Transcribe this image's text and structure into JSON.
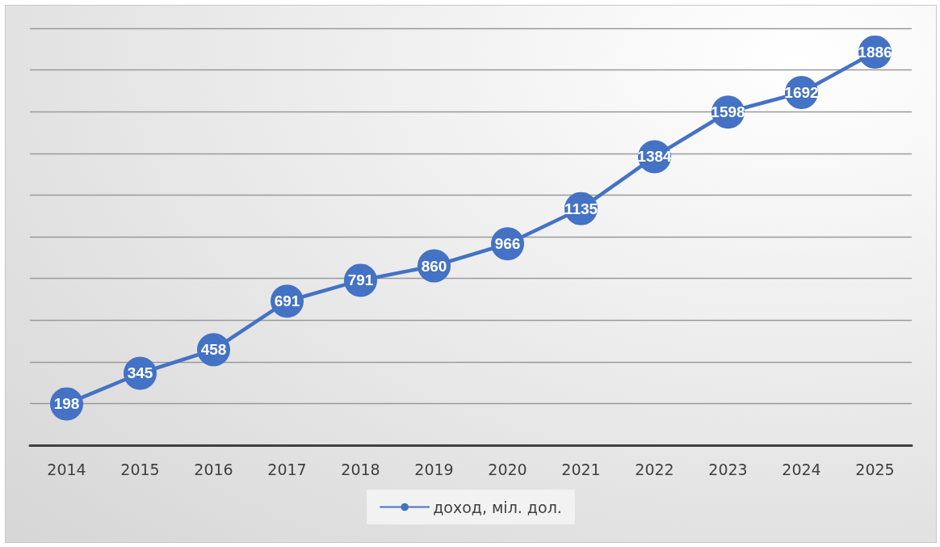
{
  "chart_data": {
    "type": "line",
    "categories": [
      "2014",
      "2015",
      "2016",
      "2017",
      "2018",
      "2019",
      "2020",
      "2021",
      "2022",
      "2023",
      "2024",
      "2025"
    ],
    "series": [
      {
        "name": "доход, міл. дол.",
        "color": "#4472c4",
        "values": [
          198,
          345,
          458,
          691,
          791,
          860,
          966,
          1135,
          1384,
          1598,
          1692,
          1886
        ]
      }
    ],
    "ylim": [
      0,
      2000
    ],
    "yticks": [
      {
        "value": 0,
        "label": null
      },
      {
        "value": 200,
        "label": null
      },
      {
        "value": 400,
        "label": null
      },
      {
        "value": 600,
        "label": null
      },
      {
        "value": 800,
        "label": null
      },
      {
        "value": 1000,
        "label": null
      },
      {
        "value": 1200,
        "label": null
      },
      {
        "value": 1400,
        "label": null
      },
      {
        "value": 1600,
        "label": null
      },
      {
        "value": 1800,
        "label": null
      },
      {
        "value": 2000,
        "label": null
      }
    ],
    "tick_labels": "x",
    "grid": "y",
    "legend": "bottom",
    "marker": "circle",
    "line_style": "solid",
    "data_labels": true
  }
}
